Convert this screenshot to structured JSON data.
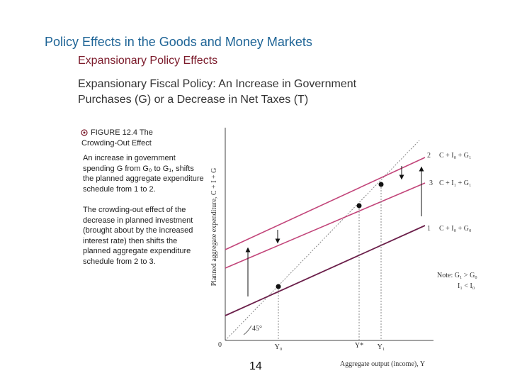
{
  "header": {
    "title": "Policy Effects in the Goods and Money Markets",
    "subtitle": "Expansionary Policy Effects"
  },
  "heading": [
    "Expansionary Fiscal Policy: An Increase in Government",
    "Purchases (G) or a Decrease in Net Taxes (T)"
  ],
  "figure": {
    "caption": "FIGURE 12.4  The Crowding-Out Effect",
    "description": [
      "An increase in government spending G from G₀ to G₁, shifts the planned aggregate expenditure schedule from 1 to 2.",
      "The crowding-out effect of the decrease in planned investment (brought about by the increased interest rate) then shifts the planned aggregate expenditure schedule from 2 to 3."
    ],
    "diagram": {
      "y_axis_label": "Planned aggregate expenditure, C + I + G",
      "x_axis_label": "Aggregate output (income), Y",
      "origin": "0",
      "angle": "45°",
      "x_markers": [
        "Y₀",
        "Y*",
        "Y₁"
      ],
      "lines": [
        {
          "number": "2",
          "label": "C + I₀ + G₁"
        },
        {
          "number": "3",
          "label": "C + I₁ + G₁"
        },
        {
          "number": "1",
          "label": "C + I₀ + G₀"
        }
      ],
      "note": [
        "Note: G₁ > G₀",
        "I₁ < I₀"
      ]
    }
  },
  "page_number": "14"
}
